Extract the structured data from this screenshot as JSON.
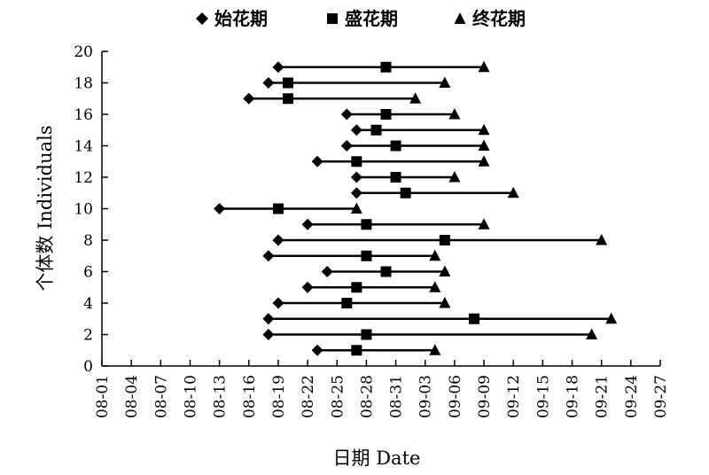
{
  "chart_data": {
    "type": "scatter",
    "xlabel": "日期 Date",
    "ylabel": "个体数 Individuals",
    "x_ticks": [
      "08-01",
      "08-04",
      "08-07",
      "08-10",
      "08-13",
      "08-16",
      "08-19",
      "08-22",
      "08-25",
      "08-28",
      "08-31",
      "09-03",
      "09-06",
      "09-09",
      "09-12",
      "09-15",
      "09-18",
      "09-21",
      "09-24",
      "09-27"
    ],
    "y_ticks": [
      0,
      2,
      4,
      6,
      8,
      10,
      12,
      14,
      16,
      18,
      20
    ],
    "xlim": [
      "08-01",
      "09-27"
    ],
    "ylim": [
      0,
      20
    ],
    "grid": false,
    "legend_position": "top",
    "legend": [
      {
        "name": "始花期",
        "marker": "diamond"
      },
      {
        "name": "盛花期",
        "marker": "square"
      },
      {
        "name": "终花期",
        "marker": "triangle"
      }
    ],
    "individuals": [
      {
        "y": 1,
        "start": "08-23",
        "peak": "08-27",
        "end": "09-04"
      },
      {
        "y": 2,
        "start": "08-18",
        "peak": "08-28",
        "end": "09-20"
      },
      {
        "y": 3,
        "start": "08-18",
        "peak": "09-08",
        "end": "09-22"
      },
      {
        "y": 4,
        "start": "08-19",
        "peak": "08-26",
        "end": "09-05"
      },
      {
        "y": 5,
        "start": "08-22",
        "peak": "08-27",
        "end": "09-04"
      },
      {
        "y": 6,
        "start": "08-24",
        "peak": "08-30",
        "end": "09-05"
      },
      {
        "y": 7,
        "start": "08-18",
        "peak": "08-28",
        "end": "09-04"
      },
      {
        "y": 8,
        "start": "08-19",
        "peak": "09-05",
        "end": "09-21"
      },
      {
        "y": 9,
        "start": "08-22",
        "peak": "08-28",
        "end": "09-09"
      },
      {
        "y": 10,
        "start": "08-13",
        "peak": "08-19",
        "end": "08-27"
      },
      {
        "y": 11,
        "start": "08-27",
        "peak": "09-01",
        "end": "09-12"
      },
      {
        "y": 12,
        "start": "08-27",
        "peak": "08-31",
        "end": "09-06"
      },
      {
        "y": 13,
        "start": "08-23",
        "peak": "08-27",
        "end": "09-09"
      },
      {
        "y": 14,
        "start": "08-26",
        "peak": "08-31",
        "end": "09-09"
      },
      {
        "y": 15,
        "start": "08-27",
        "peak": "08-29",
        "end": "09-09"
      },
      {
        "y": 16,
        "start": "08-26",
        "peak": "08-30",
        "end": "09-06"
      },
      {
        "y": 17,
        "start": "08-16",
        "peak": "08-20",
        "end": "09-02"
      },
      {
        "y": 18,
        "start": "08-18",
        "peak": "08-20",
        "end": "09-05"
      },
      {
        "y": 19,
        "start": "08-19",
        "peak": "08-30",
        "end": "09-09"
      }
    ]
  }
}
